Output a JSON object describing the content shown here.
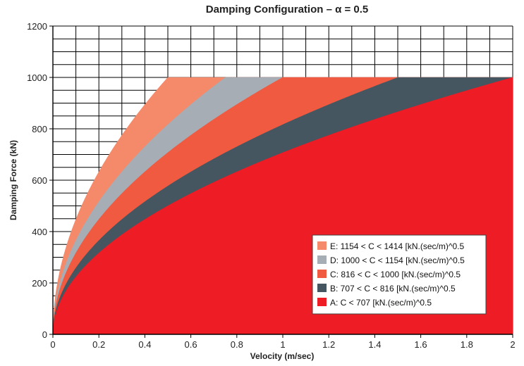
{
  "chart_data": {
    "type": "area",
    "title": "Damping Configuration – α = 0.5",
    "xlabel": "Velocity (m/sec)",
    "ylabel": "Damping Force (kN)",
    "xlim": [
      0,
      2
    ],
    "ylim": [
      0,
      1200
    ],
    "x_ticks": [
      "0",
      "0.2",
      "0.4",
      "0.6",
      "0.8",
      "1",
      "1.2",
      "1.4",
      "1.6",
      "1.8",
      "2"
    ],
    "y_ticks": [
      "0",
      "200",
      "400",
      "600",
      "800",
      "1000",
      "1200"
    ],
    "grid": "above 1000 kN and in unfilled region",
    "alpha": 0.5,
    "force_cap": 1000,
    "legend_position": "bottom-right",
    "series": [
      {
        "name": "E:  1154 < C < 1414 [kN.(sec/m)^0.5",
        "c_low": 1154,
        "c_high": 1414,
        "color": "#f58a6a"
      },
      {
        "name": "D:  1000 < C < 1154 [kN.(sec/m)^0.5",
        "c_low": 1000,
        "c_high": 1154,
        "color": "#a6adb4"
      },
      {
        "name": "C:  816 < C < 1000 [kN.(sec/m)^0.5",
        "c_low": 816,
        "c_high": 1000,
        "color": "#ef5a40"
      },
      {
        "name": "B:  707 < C < 816 [kN.(sec/m)^0.5",
        "c_low": 707,
        "c_high": 816,
        "color": "#465660"
      },
      {
        "name": "A:  C < 707 [kN.(sec/m)^0.5",
        "c_low": 0,
        "c_high": 707,
        "color": "#ee1c24"
      }
    ]
  }
}
